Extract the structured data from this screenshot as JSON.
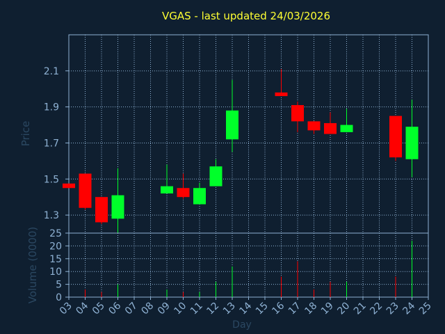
{
  "chart_data": [
    {
      "type": "candlestick",
      "title": "VGAS - last updated 24/03/2026",
      "ylabel": "Price",
      "ylim": [
        1.2,
        2.3
      ],
      "yticks": [
        1.3,
        1.5,
        1.7,
        1.9,
        2.1
      ],
      "ytick_labels": [
        "1.3",
        "1.5",
        "1.7",
        "1.9",
        "2.1"
      ],
      "grid": true,
      "up_color": "#00ff2a",
      "down_color": "#ff0000",
      "candles": [
        {
          "day": 3,
          "open": 1.475,
          "high": 1.475,
          "low": 1.45,
          "close": 1.45
        },
        {
          "day": 4,
          "open": 1.53,
          "high": 1.53,
          "low": 1.33,
          "close": 1.34
        },
        {
          "day": 5,
          "open": 1.4,
          "high": 1.4,
          "low": 1.25,
          "close": 1.26
        },
        {
          "day": 6,
          "open": 1.28,
          "high": 1.56,
          "low": 1.2,
          "close": 1.41
        },
        {
          "day": 9,
          "open": 1.42,
          "high": 1.58,
          "low": 1.42,
          "close": 1.46
        },
        {
          "day": 10,
          "open": 1.45,
          "high": 1.53,
          "low": 1.39,
          "close": 1.4
        },
        {
          "day": 11,
          "open": 1.36,
          "high": 1.48,
          "low": 1.36,
          "close": 1.45
        },
        {
          "day": 12,
          "open": 1.46,
          "high": 1.61,
          "low": 1.46,
          "close": 1.57
        },
        {
          "day": 13,
          "open": 1.72,
          "high": 2.05,
          "low": 1.65,
          "close": 1.88
        },
        {
          "day": 16,
          "open": 1.98,
          "high": 2.11,
          "low": 1.96,
          "close": 1.96
        },
        {
          "day": 17,
          "open": 1.91,
          "high": 1.93,
          "low": 1.76,
          "close": 1.82
        },
        {
          "day": 18,
          "open": 1.82,
          "high": 1.82,
          "low": 1.75,
          "close": 1.77
        },
        {
          "day": 19,
          "open": 1.81,
          "high": 1.87,
          "low": 1.75,
          "close": 1.75
        },
        {
          "day": 20,
          "open": 1.76,
          "high": 1.89,
          "low": 1.76,
          "close": 1.8
        },
        {
          "day": 23,
          "open": 1.85,
          "high": 1.85,
          "low": 1.6,
          "close": 1.62
        },
        {
          "day": 24,
          "open": 1.61,
          "high": 1.94,
          "low": 1.51,
          "close": 1.79
        }
      ]
    },
    {
      "type": "bar",
      "ylabel": "Volume (0000)",
      "xlabel": "Day",
      "ylim": [
        0,
        25
      ],
      "yticks": [
        0,
        5,
        10,
        15,
        20,
        25
      ],
      "ytick_labels": [
        "0",
        "5",
        "10",
        "15",
        "20",
        "25"
      ],
      "xlim": [
        3,
        25
      ],
      "xticks": [
        "03",
        "04",
        "05",
        "06",
        "07",
        "08",
        "09",
        "10",
        "11",
        "12",
        "13",
        "14",
        "15",
        "16",
        "17",
        "18",
        "19",
        "20",
        "21",
        "22",
        "23",
        "24",
        "25"
      ],
      "grid": true,
      "bars": [
        {
          "day": 4,
          "value": 3,
          "color": "#ff0000"
        },
        {
          "day": 5,
          "value": 2,
          "color": "#ff0000"
        },
        {
          "day": 6,
          "value": 5,
          "color": "#00ff2a"
        },
        {
          "day": 9,
          "value": 3,
          "color": "#00ff2a"
        },
        {
          "day": 10,
          "value": 2,
          "color": "#ff0000"
        },
        {
          "day": 11,
          "value": 2,
          "color": "#00ff2a"
        },
        {
          "day": 12,
          "value": 6,
          "color": "#00ff2a"
        },
        {
          "day": 13,
          "value": 12,
          "color": "#00ff2a"
        },
        {
          "day": 16,
          "value": 8,
          "color": "#ff0000"
        },
        {
          "day": 17,
          "value": 14,
          "color": "#ff0000"
        },
        {
          "day": 18,
          "value": 3,
          "color": "#ff0000"
        },
        {
          "day": 19,
          "value": 6,
          "color": "#ff0000"
        },
        {
          "day": 20,
          "value": 6,
          "color": "#00ff2a"
        },
        {
          "day": 23,
          "value": 8,
          "color": "#ff0000"
        },
        {
          "day": 24,
          "value": 22,
          "color": "#00ff2a"
        }
      ]
    }
  ]
}
